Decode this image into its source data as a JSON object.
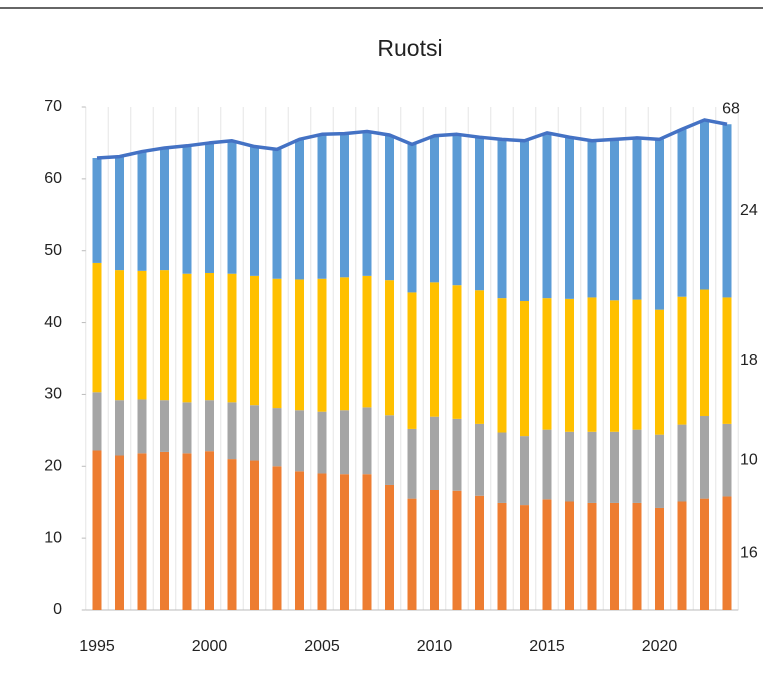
{
  "chart_data": {
    "type": "stacked_bar_line",
    "title": "Ruotsi",
    "categories": [
      1995,
      null,
      null,
      null,
      null,
      2000,
      null,
      null,
      null,
      null,
      2005,
      null,
      null,
      null,
      null,
      2010,
      null,
      null,
      null,
      null,
      2015,
      null,
      null,
      null,
      null,
      2020,
      null,
      null,
      null
    ],
    "series": [
      {
        "color": "#ed7d31",
        "values": [
          22.2,
          21.5,
          21.8,
          22.0,
          21.8,
          22.1,
          21.0,
          20.8,
          20.0,
          19.3,
          19.0,
          18.9,
          18.9,
          17.4,
          15.5,
          16.7,
          16.6,
          15.9,
          14.9,
          14.6,
          15.4,
          15.1,
          14.9,
          14.9,
          14.9,
          14.2,
          15.1,
          15.5,
          15.8
        ],
        "value_labels": [
          null,
          null,
          null,
          null,
          null,
          null,
          null,
          null,
          null,
          null,
          null,
          null,
          null,
          null,
          null,
          null,
          null,
          null,
          null,
          null,
          null,
          null,
          null,
          null,
          null,
          null,
          null,
          null,
          "16"
        ]
      },
      {
        "color": "#a5a5a5",
        "values": [
          8.1,
          7.7,
          7.5,
          7.2,
          7.1,
          7.1,
          7.9,
          7.7,
          8.1,
          8.5,
          8.6,
          8.9,
          9.3,
          9.7,
          9.7,
          10.2,
          10.0,
          10.0,
          9.8,
          9.6,
          9.7,
          9.7,
          9.9,
          9.9,
          10.2,
          10.2,
          10.7,
          11.5,
          10.1
        ],
        "value_labels": [
          null,
          null,
          null,
          null,
          null,
          null,
          null,
          null,
          null,
          null,
          null,
          null,
          null,
          null,
          null,
          null,
          null,
          null,
          null,
          null,
          null,
          null,
          null,
          null,
          null,
          null,
          null,
          null,
          "10"
        ]
      },
      {
        "color": "#ffc000",
        "values": [
          18.0,
          18.1,
          17.9,
          18.1,
          17.9,
          17.7,
          17.9,
          18.0,
          18.0,
          18.2,
          18.5,
          18.5,
          18.3,
          18.8,
          19.0,
          18.7,
          18.6,
          18.6,
          18.7,
          18.8,
          18.3,
          18.5,
          18.7,
          18.3,
          18.1,
          17.4,
          17.8,
          17.6,
          17.6
        ],
        "value_labels": [
          null,
          null,
          null,
          null,
          null,
          null,
          null,
          null,
          null,
          null,
          null,
          null,
          null,
          null,
          null,
          null,
          null,
          null,
          null,
          null,
          null,
          null,
          null,
          null,
          null,
          null,
          null,
          null,
          "18"
        ]
      },
      {
        "color": "#5b9bd5",
        "values": [
          14.6,
          15.8,
          16.6,
          17.0,
          17.8,
          18.1,
          18.5,
          18.0,
          18.0,
          19.5,
          20.1,
          20.0,
          20.1,
          20.2,
          20.6,
          20.4,
          21.0,
          21.3,
          22.1,
          22.3,
          23.0,
          22.5,
          21.8,
          22.4,
          22.5,
          23.7,
          23.3,
          23.6,
          24.1
        ],
        "value_labels": [
          null,
          null,
          null,
          null,
          null,
          null,
          null,
          null,
          null,
          null,
          null,
          null,
          null,
          null,
          null,
          null,
          null,
          null,
          null,
          null,
          null,
          null,
          null,
          null,
          null,
          null,
          null,
          null,
          "24"
        ]
      }
    ],
    "line": {
      "color": "#4472c4",
      "values": [
        62.9,
        63.1,
        63.8,
        64.3,
        64.6,
        65.0,
        65.3,
        64.5,
        64.1,
        65.5,
        66.2,
        66.3,
        66.6,
        66.1,
        64.8,
        66.0,
        66.2,
        65.8,
        65.5,
        65.3,
        66.4,
        65.8,
        65.3,
        65.5,
        65.7,
        65.5,
        66.9,
        68.2,
        67.6
      ],
      "value_labels": [
        null,
        null,
        null,
        null,
        null,
        null,
        null,
        null,
        null,
        null,
        null,
        null,
        null,
        null,
        null,
        null,
        null,
        null,
        null,
        null,
        null,
        null,
        null,
        null,
        null,
        null,
        null,
        null,
        "68"
      ]
    },
    "ylim": [
      0,
      70
    ],
    "yticks": [
      0,
      10,
      20,
      30,
      40,
      50,
      60,
      70
    ]
  }
}
